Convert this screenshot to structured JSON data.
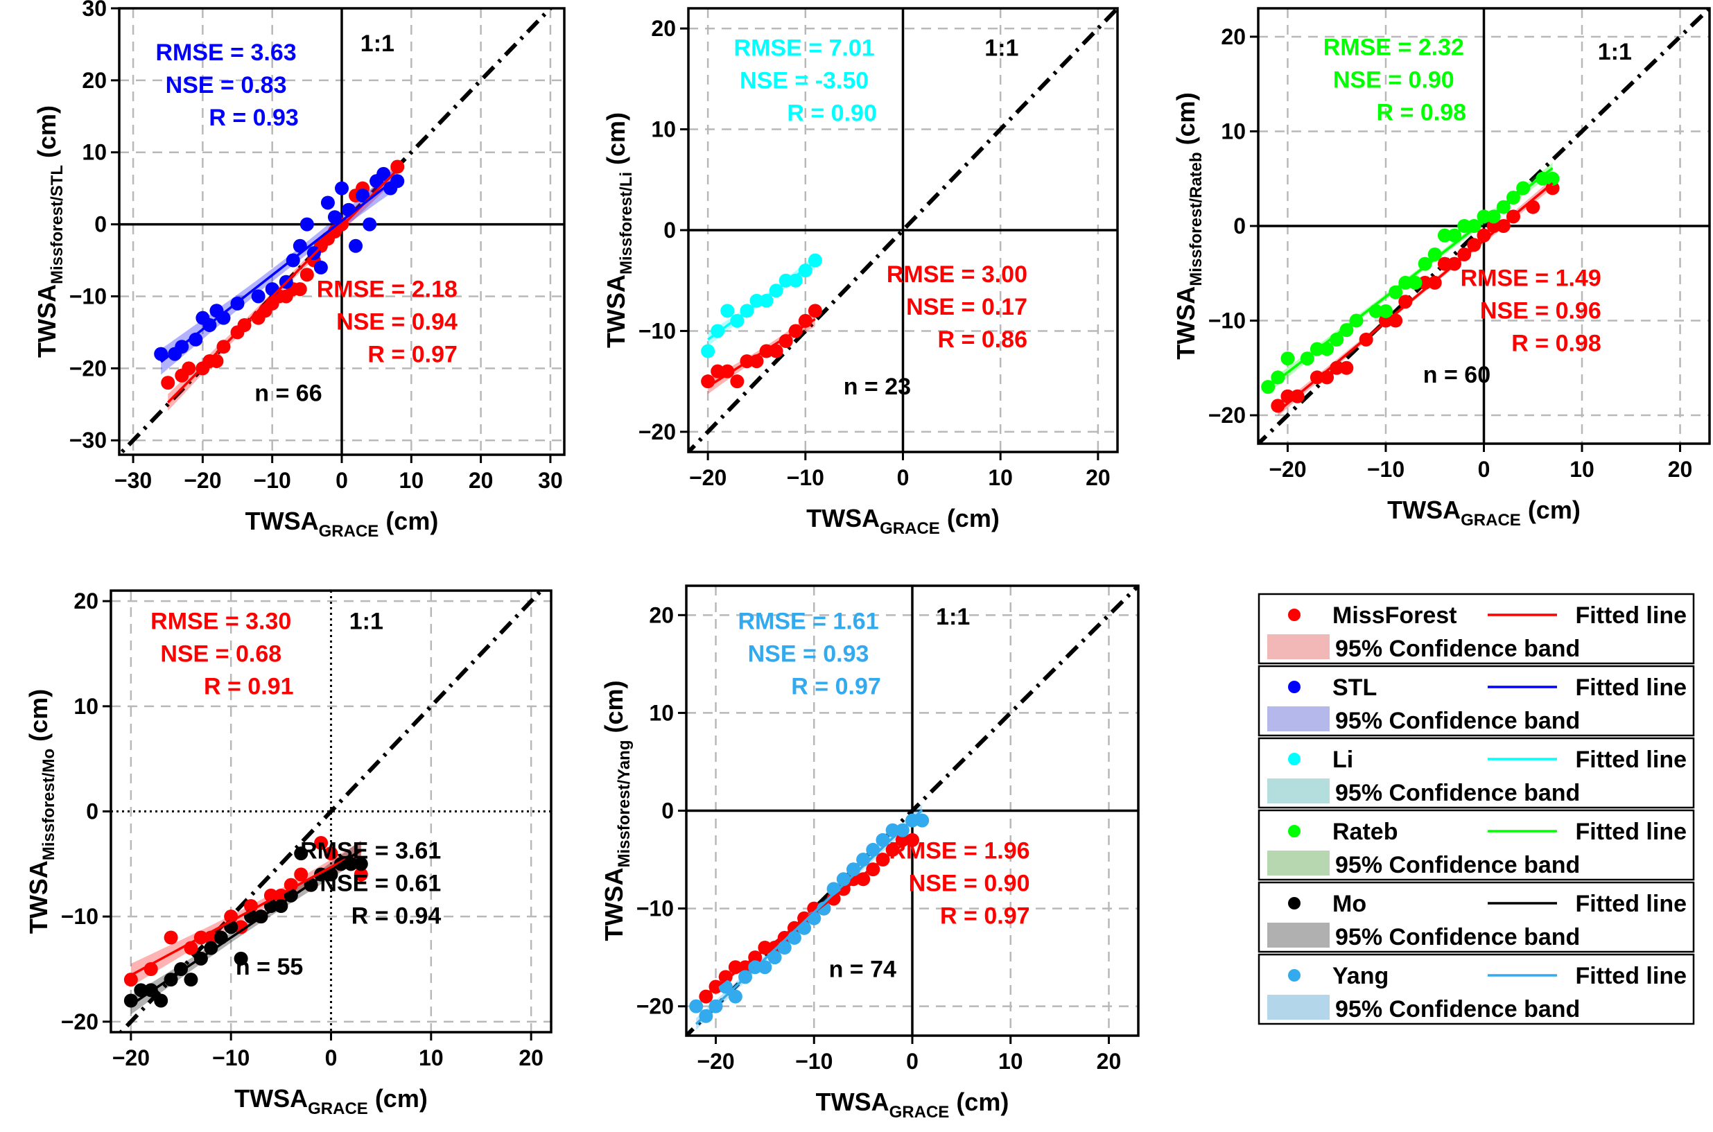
{
  "chart_data": [
    {
      "type": "scatter",
      "panel": "STL",
      "xlabel_main": "TWSA",
      "xlabel_sub": "GRACE",
      "xlabel_unit": " (cm)",
      "ylabel_main": "TWSA",
      "ylabel_sub": "Missforest/STL",
      "ylabel_unit": " (cm)",
      "xlim": [
        -32,
        32
      ],
      "ylim": [
        -32,
        30
      ],
      "xticks": [
        -30,
        -20,
        -10,
        0,
        10,
        20,
        30
      ],
      "yticks": [
        -30,
        -20,
        -10,
        0,
        10,
        20,
        30
      ],
      "x_tick_labels": [
        "−30",
        "−20",
        "−10",
        "0",
        "10",
        "20",
        "30"
      ],
      "y_tick_labels": [
        "−30",
        "−20",
        "−10",
        "0",
        "10",
        "20",
        "30"
      ],
      "grid": true,
      "origin_style": "solid",
      "one_to_one_label": "1:1",
      "n_label": "n = 66",
      "series": [
        {
          "name": "MissForest",
          "color": "#ff0000",
          "x": [
            -25,
            -23,
            -22,
            -20,
            -19,
            -18,
            -17,
            -15,
            -14,
            -12,
            -11,
            -10,
            -9,
            -8,
            -7,
            -6,
            -5,
            -4,
            -3,
            -2,
            -1,
            0,
            1,
            2,
            3,
            5,
            8
          ],
          "y": [
            -22,
            -21,
            -20,
            -20,
            -19,
            -19,
            -17,
            -15,
            -14,
            -13,
            -12,
            -11,
            -10,
            -10,
            -9,
            -9,
            -7,
            -5,
            -3,
            -2,
            -1,
            0,
            2,
            4,
            5,
            6,
            8
          ],
          "stats": {
            "rmse": "RMSE = 2.18",
            "nse": "NSE  = 0.94",
            "r": "R  = 0.97"
          }
        },
        {
          "name": "STL",
          "color": "#0000ff",
          "x": [
            -26,
            -24,
            -23,
            -21,
            -20,
            -19,
            -18,
            -17,
            -15,
            -12,
            -10,
            -8,
            -7,
            -6,
            -5,
            -4,
            -3,
            -2,
            -1,
            0,
            1,
            2,
            3,
            4,
            5,
            6,
            7,
            8
          ],
          "y": [
            -18,
            -18,
            -17,
            -16,
            -13,
            -14,
            -12,
            -13,
            -11,
            -10,
            -9,
            -8,
            -5,
            -3,
            0,
            -4,
            -6,
            3,
            1,
            5,
            2,
            -3,
            4,
            0,
            6,
            7,
            5,
            6
          ],
          "stats": {
            "rmse": "RMSE = 3.63",
            "nse": "NSE  = 0.83",
            "r": "R  = 0.93"
          }
        }
      ]
    },
    {
      "type": "scatter",
      "panel": "Li",
      "xlabel_main": "TWSA",
      "xlabel_sub": "GRACE",
      "xlabel_unit": " (cm)",
      "ylabel_main": "TWSA",
      "ylabel_sub": "Missforest/Li",
      "ylabel_unit": " (cm)",
      "xlim": [
        -22,
        22
      ],
      "ylim": [
        -22,
        22
      ],
      "xticks": [
        -20,
        -10,
        0,
        10,
        20
      ],
      "yticks": [
        -20,
        -10,
        0,
        10,
        20
      ],
      "x_tick_labels": [
        "−20",
        "−10",
        "0",
        "10",
        "20"
      ],
      "y_tick_labels": [
        "−20",
        "−10",
        "0",
        "10",
        "20"
      ],
      "grid": true,
      "origin_style": "solid",
      "one_to_one_label": "1:1",
      "n_label": "n = 23",
      "series": [
        {
          "name": "MissForest",
          "color": "#ff0000",
          "x": [
            -20,
            -19,
            -18,
            -17,
            -16,
            -15,
            -14,
            -13,
            -12,
            -11,
            -10,
            -9
          ],
          "y": [
            -15,
            -14,
            -14,
            -15,
            -13,
            -13,
            -12,
            -12,
            -11,
            -10,
            -9,
            -8
          ],
          "stats": {
            "rmse": "RMSE = 3.00",
            "nse": "NSE  = 0.17",
            "r": "R  = 0.86"
          }
        },
        {
          "name": "Li",
          "color": "#00ffff",
          "x": [
            -20,
            -19,
            -18,
            -17,
            -16,
            -15,
            -14,
            -13,
            -12,
            -11,
            -10,
            -9
          ],
          "y": [
            -12,
            -10,
            -8,
            -9,
            -8,
            -7,
            -7,
            -6,
            -5,
            -5,
            -4,
            -3
          ],
          "stats": {
            "rmse": "RMSE =  7.01",
            "nse": "NSE  = -3.50",
            "r": "R  =  0.90"
          }
        }
      ]
    },
    {
      "type": "scatter",
      "panel": "Rateb",
      "xlabel_main": "TWSA",
      "xlabel_sub": "GRACE",
      "xlabel_unit": " (cm)",
      "ylabel_main": "TWSA",
      "ylabel_sub": "Missforest/Rateb",
      "ylabel_unit": " (cm)",
      "xlim": [
        -23,
        23
      ],
      "ylim": [
        -23,
        23
      ],
      "xticks": [
        -20,
        -10,
        0,
        10,
        20
      ],
      "yticks": [
        -20,
        -10,
        0,
        10,
        20
      ],
      "x_tick_labels": [
        "−20",
        "−10",
        "0",
        "10",
        "20"
      ],
      "y_tick_labels": [
        "−20",
        "−10",
        "0",
        "10",
        "20"
      ],
      "grid": true,
      "origin_style": "solid",
      "one_to_one_label": "1:1",
      "n_label": "n = 60",
      "series": [
        {
          "name": "MissForest",
          "color": "#ff0000",
          "x": [
            -21,
            -20,
            -19,
            -17,
            -16,
            -15,
            -14,
            -12,
            -10,
            -9,
            -8,
            -6,
            -5,
            -4,
            -3,
            -2,
            -1,
            0,
            1,
            2,
            3,
            5,
            7
          ],
          "y": [
            -19,
            -18,
            -18,
            -16,
            -16,
            -15,
            -15,
            -12,
            -10,
            -10,
            -8,
            -6,
            -6,
            -4,
            -4,
            -3,
            -2,
            -1,
            0,
            0,
            1,
            2,
            4
          ],
          "stats": {
            "rmse": "RMSE = 1.49",
            "nse": "NSE  = 0.96",
            "r": "R  = 0.98"
          }
        },
        {
          "name": "Rateb",
          "color": "#00ff00",
          "x": [
            -22,
            -21,
            -20,
            -18,
            -17,
            -16,
            -15,
            -14,
            -13,
            -11,
            -10,
            -9,
            -8,
            -7,
            -6,
            -5,
            -4,
            -3,
            -2,
            -1,
            0,
            1,
            2,
            3,
            4,
            6,
            7
          ],
          "y": [
            -17,
            -16,
            -14,
            -14,
            -13,
            -13,
            -12,
            -11,
            -10,
            -9,
            -9,
            -7,
            -6,
            -6,
            -4,
            -3,
            -1,
            -1,
            0,
            0,
            1,
            1,
            2,
            3,
            4,
            5,
            5
          ],
          "stats": {
            "rmse": "RMSE =  2.32",
            "nse": "NSE  = 0.90",
            "r": "R  = 0.98"
          }
        }
      ]
    },
    {
      "type": "scatter",
      "panel": "Mo",
      "xlabel_main": "TWSA",
      "xlabel_sub": "GRACE",
      "xlabel_unit": " (cm)",
      "ylabel_main": "TWSA",
      "ylabel_sub": "Missforest/Mo",
      "ylabel_unit": " (cm)",
      "xlim": [
        -22,
        22
      ],
      "ylim": [
        -21,
        21
      ],
      "xticks": [
        -20,
        -10,
        0,
        10,
        20
      ],
      "yticks": [
        -20,
        -10,
        0,
        10,
        20
      ],
      "x_tick_labels": [
        "−20",
        "−10",
        "0",
        "10",
        "20"
      ],
      "y_tick_labels": [
        "−20",
        "−10",
        "0",
        "10",
        "20"
      ],
      "grid": true,
      "origin_style": "dotted",
      "one_to_one_label": "1:1",
      "n_label": "n = 55",
      "series": [
        {
          "name": "MissForest",
          "color": "#ff0000",
          "x": [
            -20,
            -18,
            -16,
            -14,
            -13,
            -12,
            -10,
            -9,
            -8,
            -7,
            -6,
            -5,
            -4,
            -3,
            -2,
            -1,
            0,
            1,
            2,
            3
          ],
          "y": [
            -16,
            -15,
            -12,
            -13,
            -12,
            -12,
            -10,
            -11,
            -9,
            -10,
            -8,
            -8,
            -7,
            -6,
            -7,
            -3,
            -4,
            -5,
            -5,
            -6
          ],
          "stats": {
            "rmse": "RMSE = 3.30",
            "nse": "NSE  = 0.68",
            "r": "R  = 0.91"
          }
        },
        {
          "name": "Mo",
          "color": "#000000",
          "x": [
            -20,
            -19,
            -18,
            -17,
            -16,
            -15,
            -14,
            -13,
            -12,
            -11,
            -10,
            -9,
            -8,
            -7,
            -6,
            -5,
            -4,
            -3,
            -2,
            -1,
            0,
            1,
            2,
            3
          ],
          "y": [
            -18,
            -17,
            -17,
            -18,
            -16,
            -15,
            -16,
            -14,
            -13,
            -12,
            -11,
            -14,
            -10,
            -10,
            -9,
            -9,
            -8,
            -4,
            -7,
            -6,
            -6,
            -5,
            -5,
            -5
          ],
          "stats": {
            "rmse": "RMSE = 3.61",
            "nse": "NSE  = 0.61",
            "r": "R  = 0.94"
          }
        }
      ]
    },
    {
      "type": "scatter",
      "panel": "Yang",
      "xlabel_main": "TWSA",
      "xlabel_sub": "GRACE",
      "xlabel_unit": " (cm)",
      "ylabel_main": "TWSA",
      "ylabel_sub": "Missforest/Yang",
      "ylabel_unit": " (cm)",
      "xlim": [
        -23,
        23
      ],
      "ylim": [
        -23,
        23
      ],
      "xticks": [
        -20,
        -10,
        0,
        10,
        20
      ],
      "yticks": [
        -20,
        -10,
        0,
        10,
        20
      ],
      "x_tick_labels": [
        "−20",
        "−10",
        "0",
        "10",
        "20"
      ],
      "y_tick_labels": [
        "−20",
        "−10",
        "0",
        "10",
        "20"
      ],
      "grid": true,
      "origin_style": "solid",
      "one_to_one_label": "1:1",
      "n_label": "n = 74",
      "series": [
        {
          "name": "MissForest",
          "color": "#ff0000",
          "x": [
            -21,
            -20,
            -19,
            -18,
            -17,
            -16,
            -15,
            -14,
            -13,
            -12,
            -11,
            -10,
            -9,
            -8,
            -7,
            -6,
            -5,
            -4,
            -3,
            -2,
            -1,
            0
          ],
          "y": [
            -19,
            -18,
            -17,
            -16,
            -16,
            -15,
            -14,
            -14,
            -13,
            -12,
            -11,
            -10,
            -10,
            -9,
            -8,
            -7,
            -7,
            -6,
            -5,
            -4,
            -3,
            -3
          ],
          "stats": {
            "rmse": "RMSE = 1.96",
            "nse": "NSE  = 0.90",
            "r": "R  = 0.97"
          }
        },
        {
          "name": "Yang",
          "color": "#33aaee",
          "x": [
            -22,
            -21,
            -20,
            -19,
            -18,
            -17,
            -16,
            -15,
            -14,
            -13,
            -12,
            -11,
            -10,
            -9,
            -8,
            -7,
            -6,
            -5,
            -4,
            -3,
            -2,
            -1,
            0,
            1
          ],
          "y": [
            -20,
            -21,
            -20,
            -18,
            -19,
            -17,
            -16,
            -16,
            -15,
            -14,
            -13,
            -12,
            -11,
            -10,
            -8,
            -7,
            -6,
            -5,
            -4,
            -3,
            -2,
            -2,
            -1,
            -1
          ],
          "stats": {
            "rmse": "RMSE = 1.61",
            "nse": "NSE  = 0.93",
            "r": "R  = 0.97"
          }
        }
      ]
    }
  ],
  "legend": {
    "placement": "bottom-right",
    "fitted_label": "Fitted line",
    "band_label": "95% Confidence band",
    "entries": [
      {
        "name": "MissForest",
        "color": "#ff0000",
        "band_color": "#f2b8b8"
      },
      {
        "name": "STL",
        "color": "#0000ff",
        "band_color": "#b4b8ea"
      },
      {
        "name": "Li",
        "color": "#00ffff",
        "band_color": "#b4dedd"
      },
      {
        "name": "Rateb",
        "color": "#00ff00",
        "band_color": "#b7d7b0"
      },
      {
        "name": "Mo",
        "color": "#000000",
        "band_color": "#b0b0b0"
      },
      {
        "name": "Yang",
        "color": "#33aaee",
        "band_color": "#b4d6ea"
      }
    ]
  }
}
